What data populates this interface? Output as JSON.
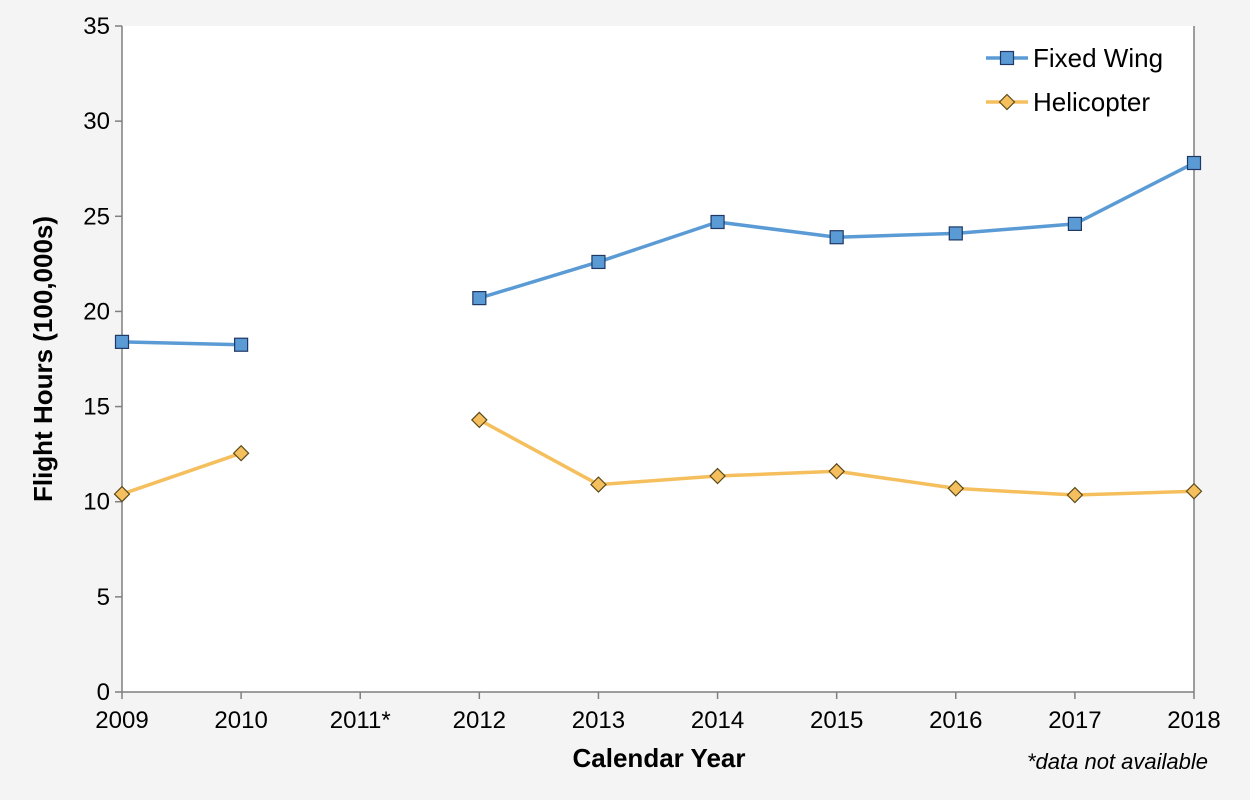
{
  "chart_data": {
    "type": "line",
    "title": "",
    "xlabel": "Calendar Year",
    "ylabel": "Flight Hours (100,000s)",
    "categories": [
      "2009",
      "2010",
      "2011*",
      "2012",
      "2013",
      "2014",
      "2015",
      "2016",
      "2017",
      "2018"
    ],
    "ylim": [
      0,
      35
    ],
    "yticks": [
      0,
      5,
      10,
      15,
      20,
      25,
      30,
      35
    ],
    "grid": false,
    "legend_position": "top-right",
    "note": "*data not available",
    "series": [
      {
        "name": "Fixed Wing",
        "color": "#5b9bd5",
        "marker": "square",
        "values": [
          18.4,
          18.25,
          null,
          20.7,
          22.6,
          24.7,
          23.9,
          24.1,
          24.6,
          27.8
        ]
      },
      {
        "name": "Helicopter",
        "color": "#f5bf5e",
        "marker": "diamond",
        "values": [
          10.4,
          12.55,
          null,
          14.3,
          10.9,
          11.35,
          11.6,
          10.7,
          10.35,
          10.55
        ]
      }
    ]
  }
}
